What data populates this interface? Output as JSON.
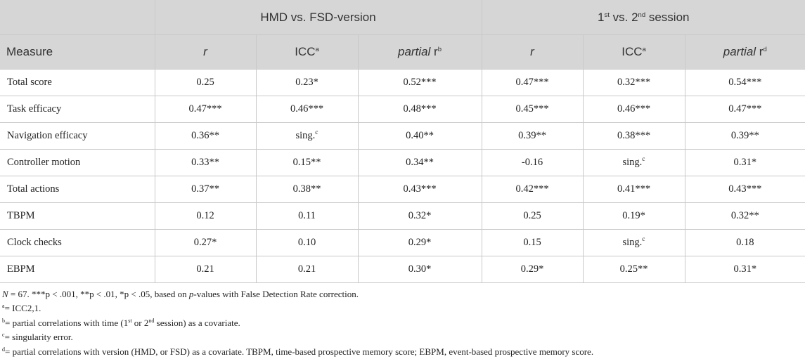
{
  "group_headers": {
    "left": "HMD vs. FSD-version",
    "right_a": "1",
    "right_a_sup": "st",
    "right_b": " vs. 2",
    "right_b_sup": "nd",
    "right_c": " session"
  },
  "col_headers": {
    "measure": "Measure",
    "r": "r",
    "icc": "ICC",
    "icc_sup": "a",
    "partial_it": "partial",
    "partial_r": " r",
    "partial_sup_left": "b",
    "partial_sup_right": "d"
  },
  "rows": [
    {
      "measure": "Total score",
      "c1": "0.25",
      "c2": "0.23*",
      "c3": "0.52***",
      "c4": "0.47***",
      "c5": "0.32***",
      "c6": "0.54***"
    },
    {
      "measure": "Task efficacy",
      "c1": "0.47***",
      "c2": "0.46***",
      "c3": "0.48***",
      "c4": "0.45***",
      "c5": "0.46***",
      "c6": "0.47***"
    },
    {
      "measure": "Navigation efficacy",
      "c1": "0.36**",
      "c2": "sing.",
      "c2_sup": "c",
      "c3": "0.40**",
      "c4": "0.39**",
      "c5": "0.38***",
      "c6": "0.39**"
    },
    {
      "measure": "Controller motion",
      "c1": "0.33**",
      "c2": "0.15**",
      "c3": "0.34**",
      "c4": "-0.16",
      "c5": "sing.",
      "c5_sup": "c",
      "c6": "0.31*"
    },
    {
      "measure": "Total actions",
      "c1": "0.37**",
      "c2": "0.38**",
      "c3": "0.43***",
      "c4": "0.42***",
      "c5": "0.41***",
      "c6": "0.43***"
    },
    {
      "measure": "TBPM",
      "c1": "0.12",
      "c2": "0.11",
      "c3": "0.32*",
      "c4": "0.25",
      "c5": "0.19*",
      "c6": "0.32**"
    },
    {
      "measure": "Clock checks",
      "c1": "0.27*",
      "c2": "0.10",
      "c3": "0.29*",
      "c4": "0.15",
      "c5": "sing.",
      "c5_sup": "c",
      "c6": "0.18"
    },
    {
      "measure": "EBPM",
      "c1": "0.21",
      "c2": "0.21",
      "c3": "0.30*",
      "c4": "0.29*",
      "c5": "0.25**",
      "c6": "0.31*"
    }
  ],
  "notes": {
    "n1_n": "N",
    "n1_a": " = 67. ***p < .001, **p < .01, *p < .05, based on ",
    "n1_p": "p",
    "n1_b": "-values with False Detection Rate correction.",
    "n2_sup": "a",
    "n2": "= ICC2,1.",
    "n3_sup": "b",
    "n3_a": "= partial correlations with time (1",
    "n3_s1": "st",
    "n3_b": " or 2",
    "n3_s2": "nd",
    "n3_c": " session) as a covariate.",
    "n4_sup": "c",
    "n4": "= singularity error.",
    "n5_sup": "d",
    "n5": "= partial correlations with version (HMD, or FSD) as a covariate. TBPM, time-based prospective memory score; EBPM, event-based prospective memory score."
  }
}
